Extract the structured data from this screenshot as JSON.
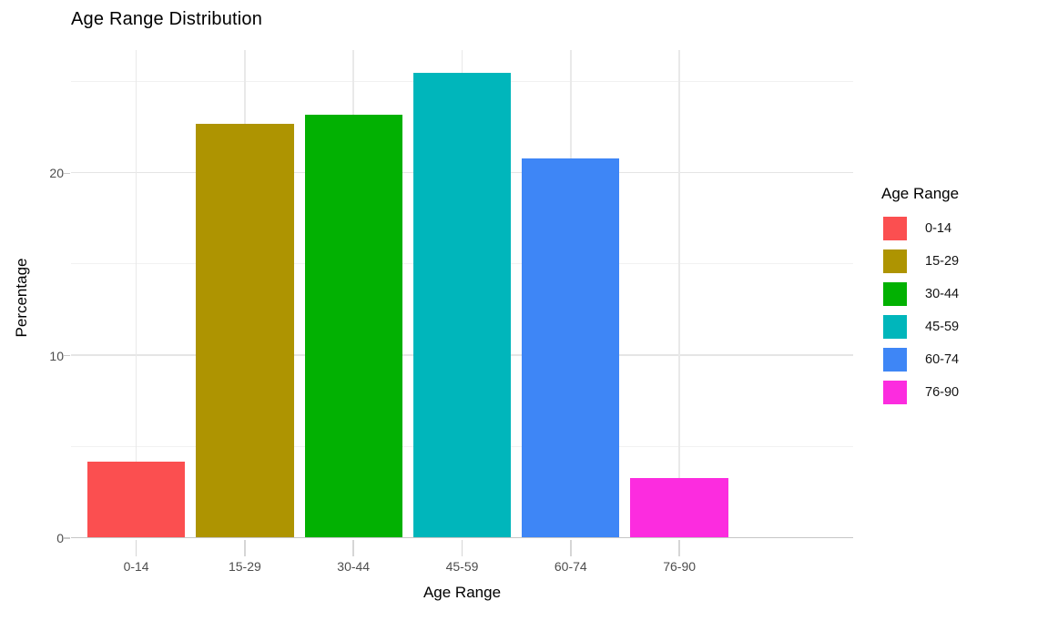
{
  "chart_data": {
    "type": "bar",
    "title": "Age Range Distribution",
    "xlabel": "Age Range",
    "ylabel": "Percentage",
    "categories": [
      "0-14",
      "15-29",
      "30-44",
      "45-59",
      "60-74",
      "76-90"
    ],
    "values": [
      4.2,
      22.7,
      23.2,
      25.5,
      20.8,
      3.3
    ],
    "bar_colors": [
      "#FB4F50",
      "#AE9401",
      "#02B102",
      "#00B6BB",
      "#3E86F6",
      "#FC2CDF"
    ],
    "ylim": [
      0,
      26.75
    ],
    "yticks": [
      0,
      10,
      20
    ],
    "minor_gridlines": [
      5,
      15,
      25
    ],
    "grid": true,
    "legend_position": "right",
    "legend": {
      "title": "Age Range",
      "entries": [
        {
          "label": "0-14",
          "color": "#FB4F50"
        },
        {
          "label": "15-29",
          "color": "#AE9401"
        },
        {
          "label": "30-44",
          "color": "#02B102"
        },
        {
          "label": "45-59",
          "color": "#00B6BB"
        },
        {
          "label": "60-74",
          "color": "#3E86F6"
        },
        {
          "label": "76-90",
          "color": "#FC2CDF"
        }
      ]
    }
  },
  "theme": {
    "background": "#FFFFFF",
    "axis_text_color": "#4D4D4D",
    "title_color": "#000000",
    "major_grid_color": "#E5E5E5",
    "minor_grid_color": "#F1F1F1",
    "axis_line_color": "#C6C6C6"
  }
}
